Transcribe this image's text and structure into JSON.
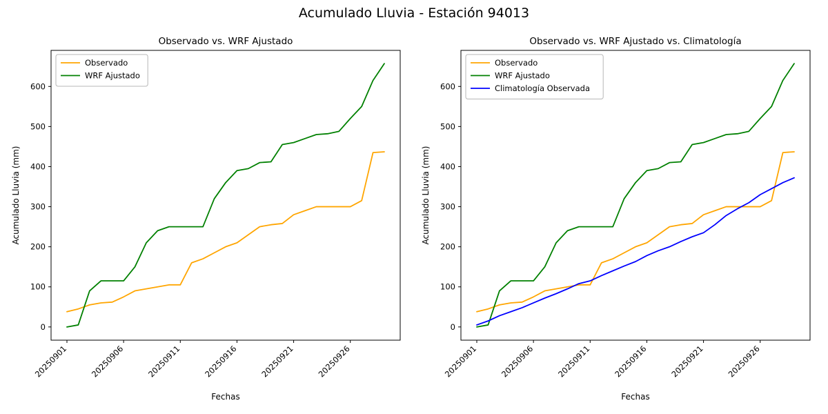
{
  "figure": {
    "title": "Acumulado Lluvia - Estación 94013"
  },
  "chart_data": [
    {
      "type": "line",
      "title": "Observado vs. WRF Ajustado",
      "xlabel": "Fechas",
      "ylabel": "Acumulado Lluvia (mm)",
      "x": [
        "20250901",
        "20250902",
        "20250903",
        "20250904",
        "20250905",
        "20250906",
        "20250907",
        "20250908",
        "20250909",
        "20250910",
        "20250911",
        "20250912",
        "20250913",
        "20250914",
        "20250915",
        "20250916",
        "20250917",
        "20250918",
        "20250919",
        "20250920",
        "20250921",
        "20250922",
        "20250923",
        "20250924",
        "20250925",
        "20250926",
        "20250927",
        "20250928",
        "20250929"
      ],
      "xticks": [
        "20250901",
        "20250906",
        "20250911",
        "20250916",
        "20250921",
        "20250926"
      ],
      "yticks": [
        0,
        100,
        200,
        300,
        400,
        500,
        600
      ],
      "ylim": [
        -33,
        690
      ],
      "grid": false,
      "legend_position": "upper-left",
      "series": [
        {
          "name": "Observado",
          "color": "#FFA500",
          "values": [
            38,
            45,
            55,
            60,
            62,
            75,
            90,
            95,
            100,
            105,
            105,
            160,
            170,
            185,
            200,
            210,
            230,
            250,
            255,
            258,
            280,
            290,
            300,
            300,
            300,
            300,
            315,
            435,
            437
          ]
        },
        {
          "name": "WRF Ajustado",
          "color": "#008000",
          "values": [
            0,
            5,
            90,
            115,
            115,
            115,
            150,
            210,
            240,
            250,
            250,
            250,
            250,
            320,
            360,
            390,
            395,
            410,
            412,
            455,
            460,
            470,
            480,
            482,
            488,
            520,
            550,
            615,
            657
          ]
        }
      ]
    },
    {
      "type": "line",
      "title": "Observado vs. WRF Ajustado vs. Climatología",
      "xlabel": "Fechas",
      "ylabel": "Acumulado Lluvia (mm)",
      "x": [
        "20250901",
        "20250902",
        "20250903",
        "20250904",
        "20250905",
        "20250906",
        "20250907",
        "20250908",
        "20250909",
        "20250910",
        "20250911",
        "20250912",
        "20250913",
        "20250914",
        "20250915",
        "20250916",
        "20250917",
        "20250918",
        "20250919",
        "20250920",
        "20250921",
        "20250922",
        "20250923",
        "20250924",
        "20250925",
        "20250926",
        "20250927",
        "20250928",
        "20250929"
      ],
      "xticks": [
        "20250901",
        "20250906",
        "20250911",
        "20250916",
        "20250921",
        "20250926"
      ],
      "yticks": [
        0,
        100,
        200,
        300,
        400,
        500,
        600
      ],
      "ylim": [
        -33,
        690
      ],
      "grid": false,
      "legend_position": "upper-left",
      "series": [
        {
          "name": "Observado",
          "color": "#FFA500",
          "values": [
            38,
            45,
            55,
            60,
            62,
            75,
            90,
            95,
            100,
            105,
            105,
            160,
            170,
            185,
            200,
            210,
            230,
            250,
            255,
            258,
            280,
            290,
            300,
            300,
            300,
            300,
            315,
            435,
            437
          ]
        },
        {
          "name": "WRF Ajustado",
          "color": "#008000",
          "values": [
            0,
            5,
            90,
            115,
            115,
            115,
            150,
            210,
            240,
            250,
            250,
            250,
            250,
            320,
            360,
            390,
            395,
            410,
            412,
            455,
            460,
            470,
            480,
            482,
            488,
            520,
            550,
            615,
            657
          ]
        },
        {
          "name": "Climatología Observada",
          "color": "#0000FF",
          "values": [
            5,
            15,
            28,
            38,
            48,
            60,
            72,
            83,
            95,
            108,
            115,
            128,
            140,
            152,
            163,
            178,
            190,
            200,
            213,
            225,
            235,
            255,
            278,
            295,
            310,
            330,
            345,
            360,
            372
          ]
        }
      ]
    }
  ]
}
